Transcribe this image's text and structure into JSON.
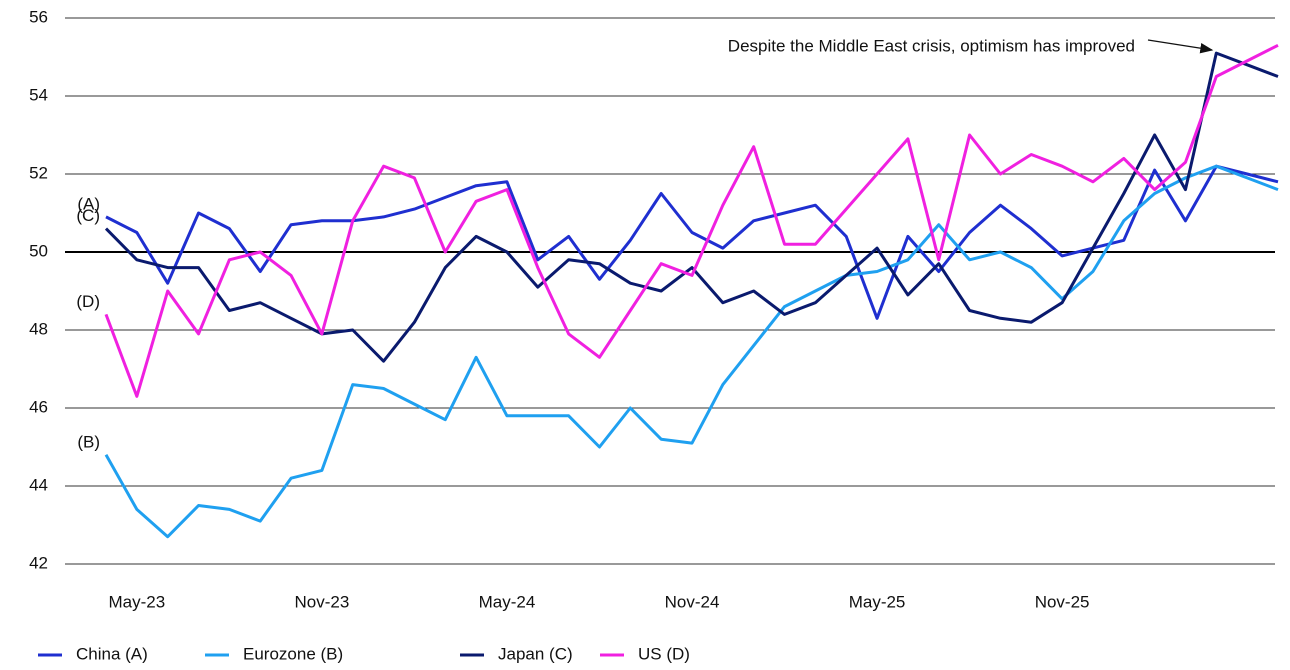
{
  "chart_data": {
    "type": "line",
    "categories": [
      null,
      "May-23",
      null,
      null,
      null,
      null,
      null,
      "Nov-23",
      null,
      null,
      null,
      null,
      null,
      "May-24",
      null,
      null,
      null,
      null,
      null,
      "Nov-24",
      null,
      null,
      null,
      null,
      null,
      "May-25",
      null,
      null,
      null,
      null,
      null,
      "Nov-25",
      null,
      null,
      null,
      null,
      null,
      null,
      null
    ],
    "series": [
      {
        "name": "China (A)",
        "tag": "(A)",
        "color": "#1f2fd0",
        "values": [
          50.9,
          50.5,
          49.2,
          51.0,
          50.6,
          49.5,
          50.7,
          50.8,
          50.8,
          50.9,
          51.1,
          51.4,
          51.7,
          51.8,
          49.8,
          50.4,
          49.3,
          50.3,
          51.5,
          50.5,
          50.1,
          50.8,
          51.0,
          51.2,
          50.4,
          48.3,
          50.4,
          49.5,
          50.5,
          51.2,
          50.6,
          49.9,
          50.1,
          50.3,
          52.1,
          50.8,
          52.2,
          52.0,
          51.8
        ]
      },
      {
        "name": "Eurozone (B)",
        "tag": "(B)",
        "color": "#1fa0f0",
        "values": [
          44.8,
          43.4,
          42.7,
          43.5,
          43.4,
          43.1,
          44.2,
          44.4,
          46.6,
          46.5,
          46.1,
          45.7,
          47.3,
          45.8,
          45.8,
          45.8,
          45.0,
          46.0,
          45.2,
          45.1,
          46.6,
          47.6,
          48.6,
          49.0,
          49.4,
          49.5,
          49.8,
          50.7,
          49.8,
          50.0,
          49.6,
          48.8,
          49.5,
          50.8,
          51.5,
          51.9,
          52.2,
          51.9,
          51.6
        ]
      },
      {
        "name": "Japan (C)",
        "tag": "(C)",
        "color": "#0a1a6e",
        "values": [
          50.6,
          49.8,
          49.6,
          49.6,
          48.5,
          48.7,
          48.3,
          47.9,
          48.0,
          47.2,
          48.2,
          49.6,
          50.4,
          50.0,
          49.1,
          49.8,
          49.7,
          49.2,
          49.0,
          49.6,
          48.7,
          49.0,
          48.4,
          48.7,
          49.4,
          50.1,
          48.9,
          49.7,
          48.5,
          48.3,
          48.2,
          48.7,
          50.1,
          51.5,
          53.0,
          51.6,
          55.1,
          54.8,
          54.5
        ]
      },
      {
        "name": "US (D)",
        "tag": "(D)",
        "color": "#f020e0",
        "values": [
          48.4,
          46.3,
          49.0,
          47.9,
          49.8,
          50.0,
          49.4,
          47.9,
          50.8,
          52.2,
          51.9,
          50.0,
          51.3,
          51.6,
          49.6,
          47.9,
          47.3,
          48.5,
          49.7,
          49.4,
          51.2,
          52.7,
          50.2,
          50.2,
          51.1,
          52.0,
          52.9,
          49.8,
          53.0,
          52.0,
          52.5,
          52.2,
          51.8,
          52.4,
          51.6,
          52.3,
          54.5,
          54.9,
          55.3
        ]
      }
    ],
    "ylim": [
      42,
      56
    ],
    "yticks": [
      42,
      44,
      46,
      48,
      50,
      52,
      54,
      56
    ],
    "grid": true,
    "reference_line": 50,
    "annotation": "Despite the Middle East crisis, optimism has improved",
    "legend": "bottom"
  }
}
